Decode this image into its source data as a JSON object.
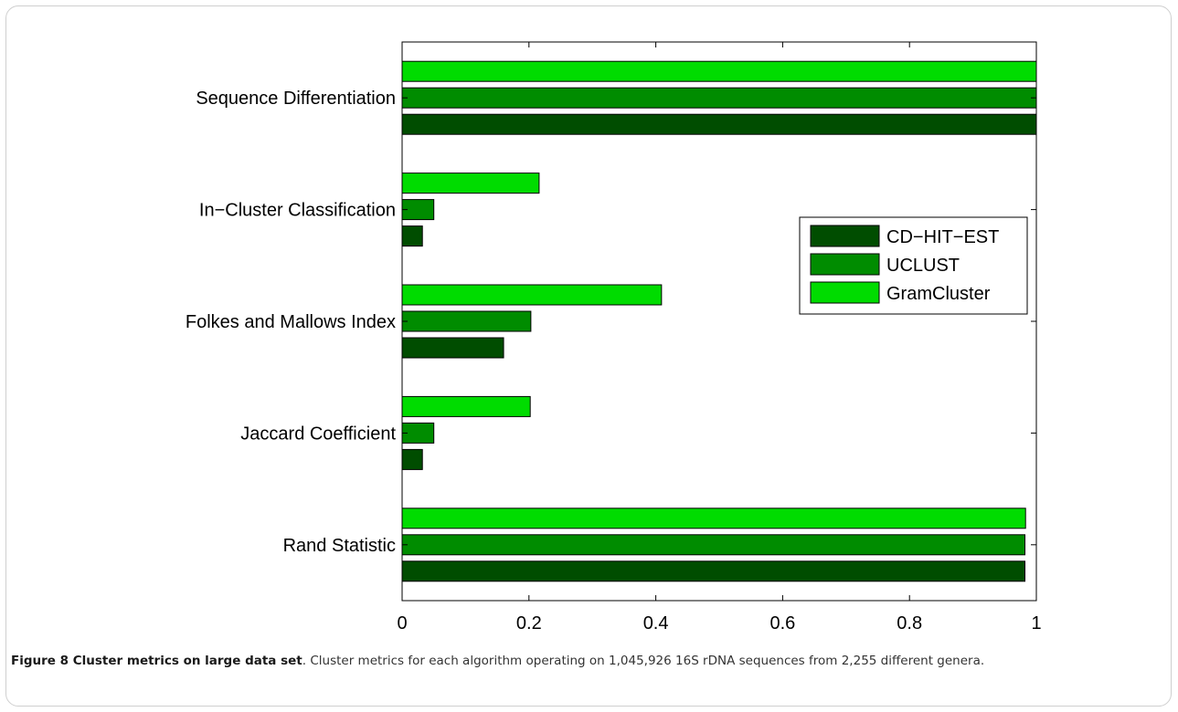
{
  "chart_data": {
    "type": "bar",
    "orientation": "horizontal",
    "categories": [
      "Rand Statistic",
      "Jaccard Coefficient",
      "Folkes and Mallows Index",
      "In−Cluster Classification",
      "Sequence Differentiation"
    ],
    "series": [
      {
        "name": "CD−HIT−EST",
        "color": "#004d00",
        "values": [
          0.982,
          0.032,
          0.16,
          0.032,
          1.0
        ]
      },
      {
        "name": "UCLUST",
        "color": "#008c00",
        "values": [
          0.982,
          0.05,
          0.203,
          0.05,
          1.0
        ]
      },
      {
        "name": "GramCluster",
        "color": "#00dc00",
        "values": [
          0.983,
          0.202,
          0.409,
          0.216,
          1.0
        ]
      }
    ],
    "xlim": [
      0,
      1
    ],
    "xticks": [
      "0",
      "0.2",
      "0.4",
      "0.6",
      "0.8",
      "1"
    ],
    "xlabel": "",
    "ylabel": "",
    "title": "",
    "legend_position": "right",
    "grid": false
  },
  "caption": {
    "label": "Figure 8 Cluster metrics on large data set",
    "text": ". Cluster metrics for each algorithm operating on 1,045,926 16S rDNA sequences from 2,255 different genera."
  }
}
